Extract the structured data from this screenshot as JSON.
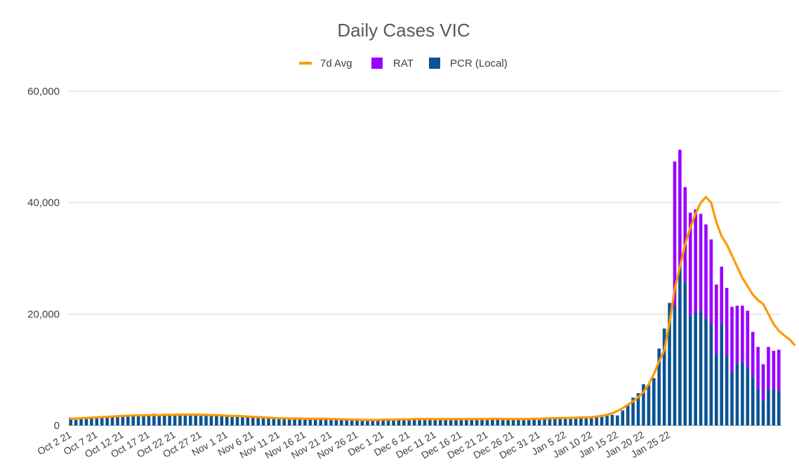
{
  "chart_data": {
    "type": "bar",
    "title": "Daily Cases VIC",
    "stacked": true,
    "legend_position": "top",
    "grid": true,
    "ylim": [
      0,
      60000
    ],
    "yticks": [
      0,
      20000,
      40000,
      60000
    ],
    "ytick_labels": [
      "0",
      "20,000",
      "40,000",
      "60,000"
    ],
    "xtick_labels": [
      "Oct 2 21",
      "Oct 7 21",
      "Oct 12 21",
      "Oct 17 21",
      "Oct 22 21",
      "Oct 27 21",
      "Nov 1 21",
      "Nov 6 21",
      "Nov 11 21",
      "Nov 16 21",
      "Nov 21 21",
      "Nov 26 21",
      "Dec 1 21",
      "Dec 6 21",
      "Dec 11 21",
      "Dec 16 21",
      "Dec 21 21",
      "Dec 26 21",
      "Dec 31 21",
      "Jan 5 22",
      "Jan 10 22",
      "Jan 15 22",
      "Jan 20 22",
      "Jan 25 22"
    ],
    "xtick_every": 5,
    "series": [
      {
        "name": "7d Avg",
        "kind": "line",
        "color": "#ff9900",
        "values": [
          1200,
          1250,
          1300,
          1350,
          1400,
          1450,
          1500,
          1550,
          1600,
          1650,
          1700,
          1750,
          1800,
          1800,
          1800,
          1850,
          1850,
          1850,
          1900,
          1900,
          1900,
          1950,
          1950,
          1950,
          1950,
          1900,
          1900,
          1850,
          1850,
          1800,
          1750,
          1700,
          1700,
          1650,
          1600,
          1550,
          1500,
          1450,
          1400,
          1350,
          1300,
          1300,
          1250,
          1250,
          1250,
          1200,
          1200,
          1200,
          1200,
          1200,
          1150,
          1150,
          1100,
          1100,
          1050,
          1050,
          1000,
          1000,
          1000,
          1000,
          1050,
          1050,
          1050,
          1100,
          1100,
          1100,
          1150,
          1150,
          1150,
          1150,
          1150,
          1150,
          1150,
          1150,
          1150,
          1150,
          1150,
          1150,
          1150,
          1150,
          1150,
          1200,
          1200,
          1150,
          1150,
          1150,
          1150,
          1150,
          1150,
          1200,
          1200,
          1250,
          1300,
          1300,
          1350,
          1350,
          1350,
          1400,
          1450,
          1450,
          1500,
          1600,
          1700,
          1900,
          2200,
          2600,
          3100,
          3700,
          4300,
          5100,
          6000,
          7400,
          9200,
          11500,
          13500,
          18500,
          24500,
          28500,
          32500,
          35500,
          38000,
          40000,
          41000,
          40000,
          36500,
          34000,
          32500,
          30500,
          28500,
          26500,
          25000,
          23500,
          22500,
          21800,
          20000,
          18200,
          17000,
          16200,
          15500,
          14500
        ]
      },
      {
        "name": "RAT",
        "kind": "bar",
        "color": "#9900ff",
        "values": [
          0,
          0,
          0,
          0,
          0,
          0,
          0,
          0,
          0,
          0,
          0,
          0,
          0,
          0,
          0,
          0,
          0,
          0,
          0,
          0,
          0,
          0,
          0,
          0,
          0,
          0,
          0,
          0,
          0,
          0,
          0,
          0,
          0,
          0,
          0,
          0,
          0,
          0,
          0,
          0,
          0,
          0,
          0,
          0,
          0,
          0,
          0,
          0,
          0,
          0,
          0,
          0,
          0,
          0,
          0,
          0,
          0,
          0,
          0,
          0,
          0,
          0,
          0,
          0,
          0,
          0,
          0,
          0,
          0,
          0,
          0,
          0,
          0,
          0,
          0,
          0,
          0,
          0,
          0,
          0,
          0,
          0,
          0,
          0,
          0,
          0,
          0,
          0,
          0,
          0,
          0,
          0,
          0,
          0,
          0,
          0,
          0,
          0,
          0,
          0,
          0,
          0,
          0,
          0,
          0,
          0,
          0,
          0,
          0,
          0,
          0,
          0,
          0,
          0,
          0,
          0,
          26000,
          21000,
          17000,
          18500,
          18500,
          17500,
          16800,
          15200,
          12500,
          10200,
          12200,
          11800,
          10400,
          10000,
          10400,
          8000,
          7500,
          6500,
          7500,
          6900,
          7400
        ]
      },
      {
        "name": "PCR (Local)",
        "kind": "bar",
        "color": "#0b5394",
        "values": [
          1400,
          1000,
          1300,
          1400,
          1400,
          1500,
          1450,
          1500,
          1600,
          1600,
          1700,
          1700,
          1800,
          1750,
          1900,
          1750,
          2100,
          1800,
          1900,
          1950,
          1850,
          2000,
          1800,
          1850,
          1850,
          1900,
          1800,
          2000,
          1850,
          1800,
          1750,
          1600,
          1650,
          1650,
          1550,
          1600,
          1500,
          1400,
          1350,
          1350,
          1300,
          1350,
          1100,
          1200,
          1250,
          1150,
          1200,
          1150,
          1100,
          1100,
          1100,
          1050,
          1050,
          1000,
          1000,
          950,
          1000,
          950,
          1050,
          1000,
          1050,
          1100,
          1100,
          1100,
          1050,
          1100,
          1050,
          1150,
          1100,
          1100,
          1150,
          1100,
          1150,
          1100,
          1100,
          1150,
          1100,
          1150,
          1100,
          1150,
          1150,
          1150,
          1100,
          1100,
          1150,
          1100,
          1150,
          1100,
          1150,
          1100,
          1150,
          1150,
          1200,
          1200,
          1250,
          1300,
          1550,
          1200,
          1350,
          1250,
          1300,
          1500,
          1900,
          2000,
          1900,
          1800,
          2700,
          3700,
          5000,
          5800,
          7400,
          7300,
          8500,
          13800,
          17400,
          22000,
          21400,
          28500,
          25800,
          19700,
          20300,
          20500,
          19300,
          18200,
          12800,
          18300,
          12500,
          9500,
          11100,
          11500,
          10200,
          8800,
          6600,
          4500,
          6600,
          6500,
          6200
        ]
      }
    ]
  }
}
